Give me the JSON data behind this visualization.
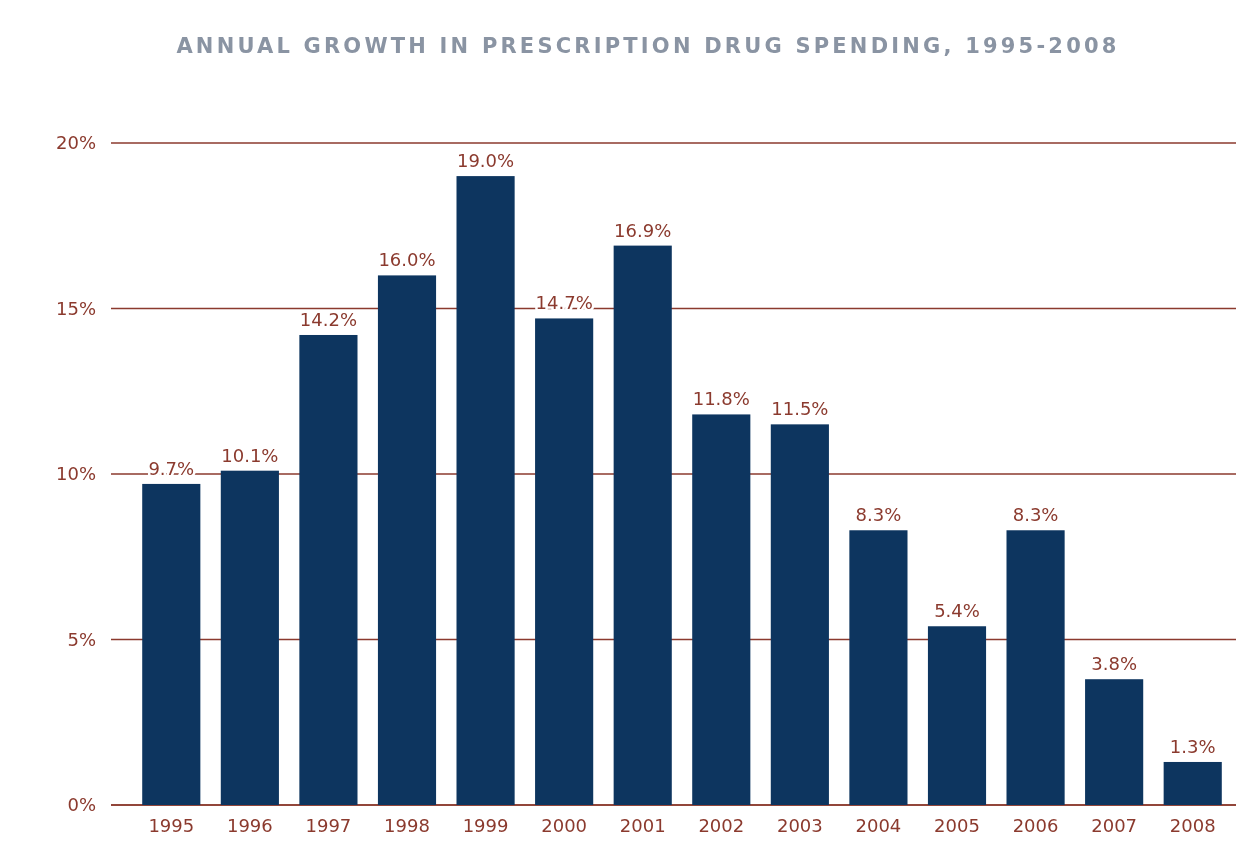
{
  "chart_data": {
    "type": "bar",
    "title": "ANNUAL GROWTH IN PRESCRIPTION DRUG SPENDING, 1995-2008",
    "categories": [
      "1995",
      "1996",
      "1997",
      "1998",
      "1999",
      "2000",
      "2001",
      "2002",
      "2003",
      "2004",
      "2005",
      "2006",
      "2007",
      "2008"
    ],
    "values": [
      9.7,
      10.1,
      14.2,
      16.0,
      19.0,
      14.7,
      16.9,
      11.8,
      11.5,
      8.3,
      5.4,
      8.3,
      3.8,
      1.3
    ],
    "value_labels": [
      "9.7%",
      "10.1%",
      "14.2%",
      "16.0%",
      "19.0%",
      "14.7%",
      "16.9%",
      "11.8%",
      "11.5%",
      "8.3%",
      "5.4%",
      "8.3%",
      "3.8%",
      "1.3%"
    ],
    "color": "#0d355f",
    "ylim": [
      0,
      20
    ],
    "yticks": [
      {
        "value": 0,
        "label": "0%"
      },
      {
        "value": 5,
        "label": "5%"
      },
      {
        "value": 10,
        "label": "10%"
      },
      {
        "value": 15,
        "label": "15%"
      },
      {
        "value": 20,
        "label": "20%"
      }
    ],
    "grid": "y"
  }
}
